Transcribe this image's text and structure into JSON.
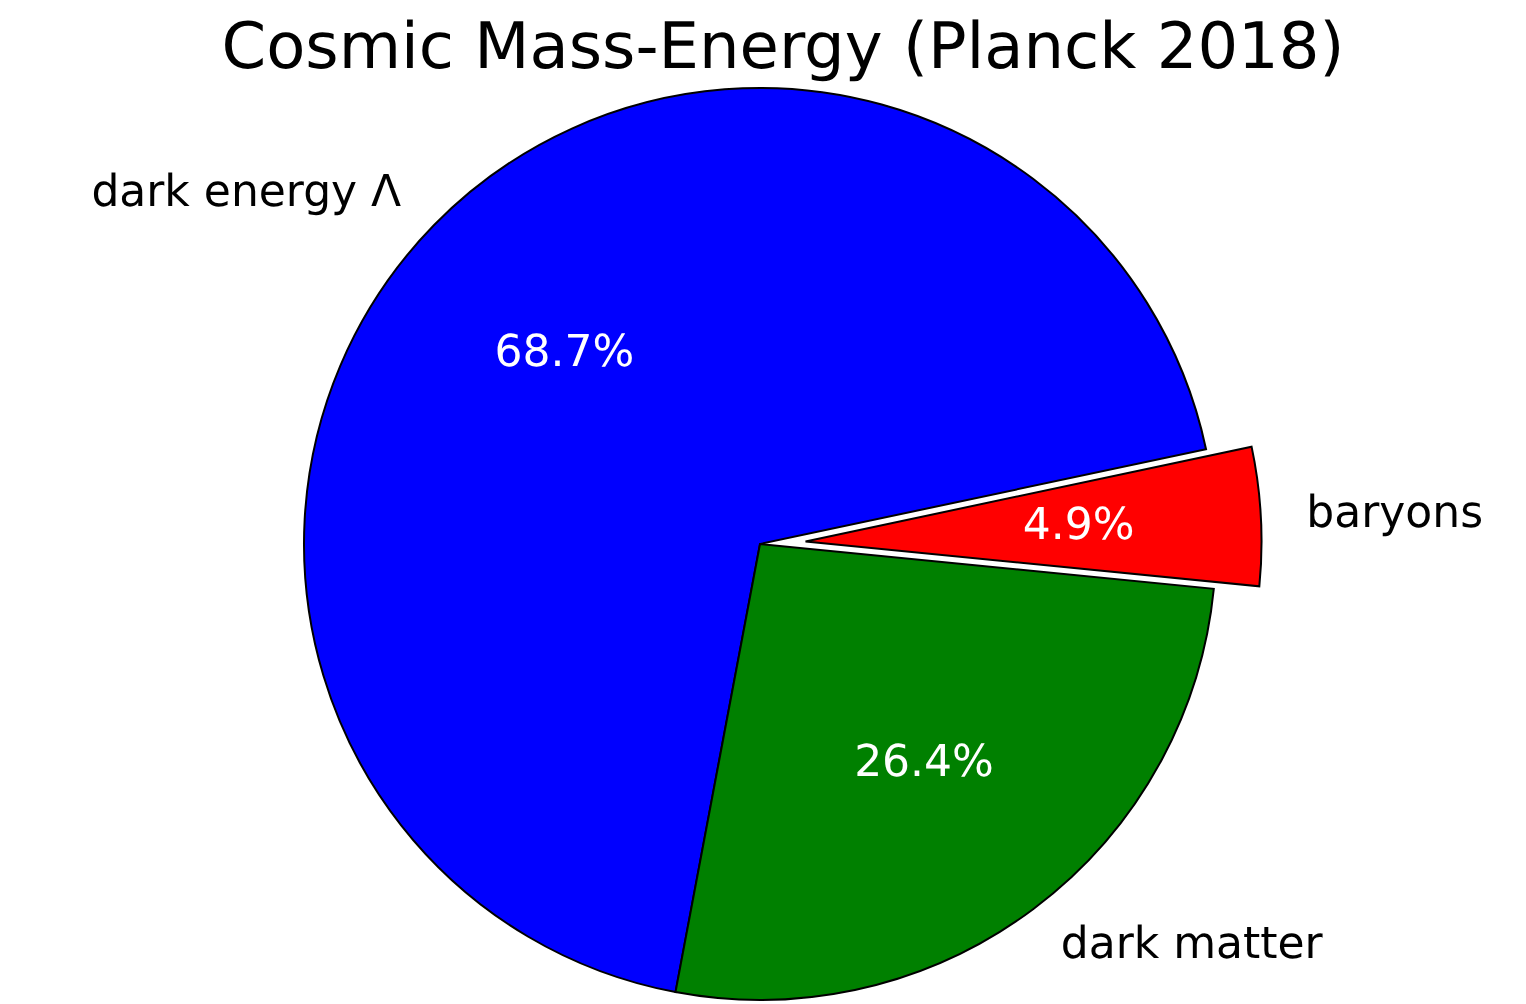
{
  "chart_data": {
    "type": "pie",
    "title": "Cosmic Mass-Energy (Planck 2018)",
    "categories": [
      "dark energy Λ",
      "dark matter",
      "baryons"
    ],
    "values": [
      68.7,
      26.4,
      4.9
    ],
    "colors": [
      "#0000ff",
      "#008000",
      "#ff0000"
    ],
    "value_labels": [
      "68.7%",
      "26.4%",
      "4.9%"
    ]
  }
}
